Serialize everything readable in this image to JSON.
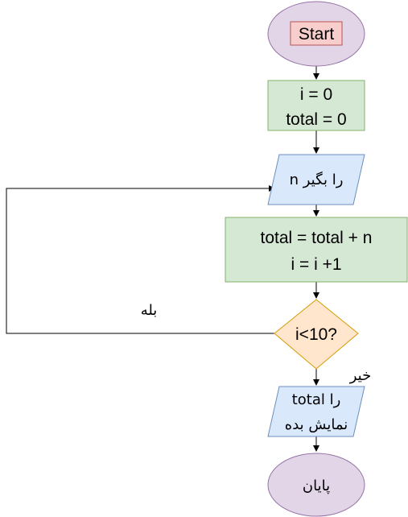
{
  "flowchart": {
    "start": {
      "label": "Start"
    },
    "init": {
      "line1": "i = 0",
      "line2": "total = 0"
    },
    "input": {
      "label": "n را بگیر"
    },
    "process": {
      "line1": "total = total + n",
      "line2": "i = i +1"
    },
    "decision": {
      "label": "i<10?"
    },
    "yes_label": "بله",
    "no_label": "خیر",
    "output": {
      "line1": "total را",
      "line2": "نمایش بده"
    },
    "end": {
      "label": "پایان"
    }
  },
  "colors": {
    "terminal_fill": "#e1d5e7",
    "terminal_stroke": "#9673a6",
    "process_fill": "#d5e8d4",
    "process_stroke": "#82b366",
    "io_fill": "#dae8fc",
    "io_stroke": "#6c8ebf",
    "decision_fill": "#ffe6cc",
    "decision_stroke": "#d79b00",
    "highlight_fill": "#f8cecc",
    "highlight_stroke": "#b85450"
  }
}
